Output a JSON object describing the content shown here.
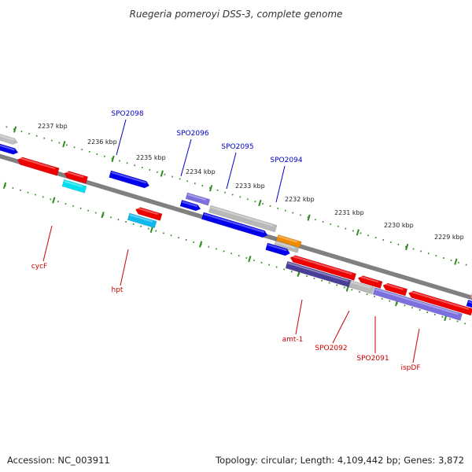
{
  "title": "Ruegeria pomeroyi DSS-3, complete genome",
  "footer": {
    "accession": "Accession: NC_003911",
    "topology": "Topology: circular; Length: 4,109,442 bp; Genes: 3,872"
  },
  "scale": [
    {
      "label": "2237 kbp"
    },
    {
      "label": "2236 kbp"
    },
    {
      "label": "2235 kbp"
    },
    {
      "label": "2234 kbp"
    },
    {
      "label": "2233 kbp"
    },
    {
      "label": "2232 kbp"
    },
    {
      "label": "2231 kbp"
    },
    {
      "label": "2230 kbp"
    },
    {
      "label": "2229 kbp"
    }
  ],
  "colors": {
    "backbone": "#808080",
    "tick": "#2e8b1e",
    "forward_label": "#0000cc",
    "reverse_label": "#cc0000",
    "red": "#ee0000",
    "blue": "#0000ee",
    "gray": "#b8b8b8",
    "slate": "#7b70dd",
    "dark_slate": "#4a3f98",
    "cyan": "#00e0ee",
    "sky": "#10b8ee",
    "orange": "#f08a00",
    "pink": "#f0a0a0"
  },
  "gene_labels": [
    {
      "text": "SPO2098",
      "strand": "forward"
    },
    {
      "text": "SPO2096",
      "strand": "forward"
    },
    {
      "text": "SPO2095",
      "strand": "forward"
    },
    {
      "text": "SPO2094",
      "strand": "forward"
    },
    {
      "text": "cycF",
      "strand": "reverse"
    },
    {
      "text": "hpt",
      "strand": "reverse"
    },
    {
      "text": "amt-1",
      "strand": "reverse"
    },
    {
      "text": "SPO2092",
      "strand": "reverse"
    },
    {
      "text": "SPO2091",
      "strand": "reverse"
    },
    {
      "text": "ispDF",
      "strand": "reverse"
    }
  ]
}
